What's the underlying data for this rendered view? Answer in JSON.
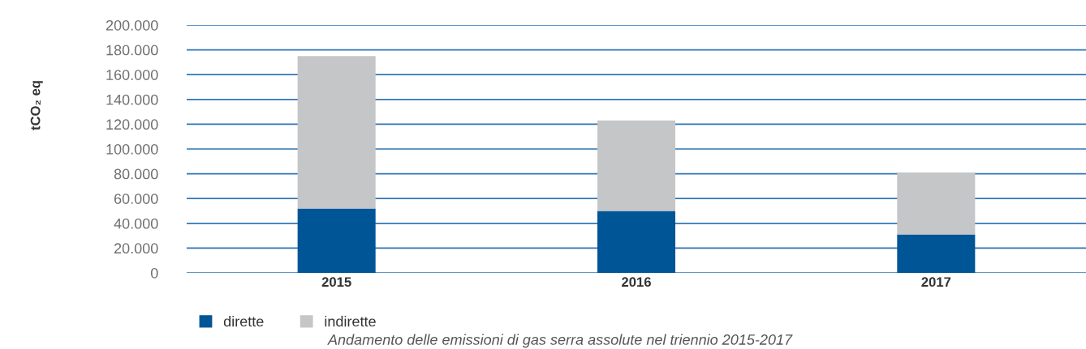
{
  "chart_data": {
    "type": "bar",
    "stacked": true,
    "categories": [
      "2015",
      "2016",
      "2017"
    ],
    "ylabel": "tCO₂ eq",
    "series": [
      {
        "name": "dirette",
        "color": "#005596",
        "values": [
          52000,
          50000,
          31000
        ]
      },
      {
        "name": "indirette",
        "color": "#c5c6c8",
        "values": [
          123000,
          73000,
          50000
        ]
      }
    ],
    "ylim": [
      0,
      200000
    ],
    "yticks": [
      {
        "value": 0,
        "label": "0"
      },
      {
        "value": 20000,
        "label": "20.000"
      },
      {
        "value": 40000,
        "label": "40.000"
      },
      {
        "value": 60000,
        "label": "60.000"
      },
      {
        "value": 80000,
        "label": "80.000"
      },
      {
        "value": 100000,
        "label": "100.000"
      },
      {
        "value": 120000,
        "label": "120.000"
      },
      {
        "value": 140000,
        "label": "140.000"
      },
      {
        "value": 160000,
        "label": "160.000"
      },
      {
        "value": 180000,
        "label": "180.000"
      },
      {
        "value": 200000,
        "label": "200.000"
      }
    ],
    "grid": "y",
    "legend": "bottom left",
    "annotations": [
      "Andamento delle emissioni di gas serra assolute nel triennio 2015-2017"
    ]
  }
}
